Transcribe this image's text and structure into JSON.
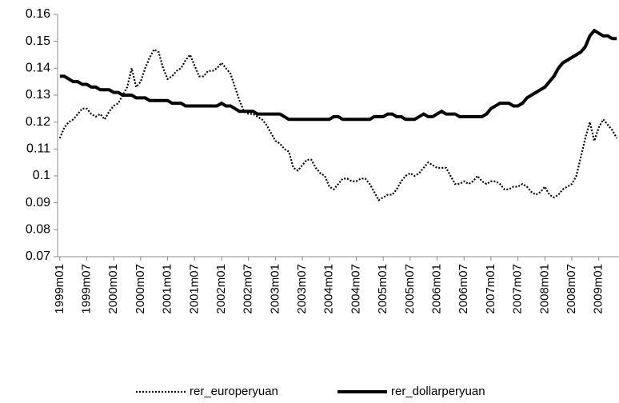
{
  "chart_data": {
    "type": "line",
    "categories": [
      "1999m01",
      null,
      null,
      null,
      null,
      null,
      "1999m07",
      null,
      null,
      null,
      null,
      null,
      "2000m01",
      null,
      null,
      null,
      null,
      null,
      "2000m07",
      null,
      null,
      null,
      null,
      null,
      "2001m01",
      null,
      null,
      null,
      null,
      null,
      "2001m07",
      null,
      null,
      null,
      null,
      null,
      "2002m01",
      null,
      null,
      null,
      null,
      null,
      "2002m07",
      null,
      null,
      null,
      null,
      null,
      "2003m01",
      null,
      null,
      null,
      null,
      null,
      "2003m07",
      null,
      null,
      null,
      null,
      null,
      "2004m01",
      null,
      null,
      null,
      null,
      null,
      "2004m07",
      null,
      null,
      null,
      null,
      null,
      "2005m01",
      null,
      null,
      null,
      null,
      null,
      "2005m07",
      null,
      null,
      null,
      null,
      null,
      "2006m01",
      null,
      null,
      null,
      null,
      null,
      "2006m07",
      null,
      null,
      null,
      null,
      null,
      "2007m01",
      null,
      null,
      null,
      null,
      null,
      "2007m07",
      null,
      null,
      null,
      null,
      null,
      "2008m01",
      null,
      null,
      null,
      null,
      null,
      "2008m07",
      null,
      null,
      null,
      null,
      null,
      "2009m01",
      null,
      null,
      null,
      null
    ],
    "series": [
      {
        "name": "rer_europeryuan",
        "color": "#000000",
        "dash": "2,2",
        "values": [
          0.114,
          0.118,
          0.12,
          0.121,
          0.123,
          0.125,
          0.125,
          0.123,
          0.122,
          0.123,
          0.121,
          0.124,
          0.126,
          0.127,
          0.13,
          0.133,
          0.14,
          0.133,
          0.135,
          0.14,
          0.144,
          0.147,
          0.146,
          0.14,
          0.136,
          0.137,
          0.139,
          0.14,
          0.143,
          0.145,
          0.141,
          0.137,
          0.137,
          0.139,
          0.139,
          0.14,
          0.142,
          0.14,
          0.138,
          0.133,
          0.128,
          0.124,
          0.123,
          0.123,
          0.122,
          0.121,
          0.119,
          0.116,
          0.113,
          0.112,
          0.11,
          0.109,
          0.103,
          0.102,
          0.104,
          0.106,
          0.106,
          0.103,
          0.101,
          0.1,
          0.096,
          0.095,
          0.097,
          0.099,
          0.099,
          0.098,
          0.098,
          0.099,
          0.099,
          0.097,
          0.094,
          0.091,
          0.092,
          0.093,
          0.093,
          0.095,
          0.098,
          0.1,
          0.101,
          0.1,
          0.101,
          0.103,
          0.105,
          0.104,
          0.103,
          0.103,
          0.103,
          0.1,
          0.097,
          0.097,
          0.098,
          0.097,
          0.098,
          0.1,
          0.098,
          0.097,
          0.098,
          0.098,
          0.097,
          0.095,
          0.095,
          0.096,
          0.096,
          0.097,
          0.096,
          0.094,
          0.093,
          0.094,
          0.096,
          0.093,
          0.092,
          0.093,
          0.095,
          0.096,
          0.097,
          0.1,
          0.107,
          0.114,
          0.12,
          0.113,
          0.118,
          0.121,
          0.119,
          0.117,
          0.114
        ]
      },
      {
        "name": "rer_dollarperyuan",
        "color": "#000000",
        "dash": "none",
        "values": [
          0.137,
          0.137,
          0.136,
          0.135,
          0.135,
          0.134,
          0.134,
          0.133,
          0.133,
          0.132,
          0.132,
          0.132,
          0.131,
          0.131,
          0.13,
          0.13,
          0.13,
          0.129,
          0.129,
          0.129,
          0.128,
          0.128,
          0.128,
          0.128,
          0.128,
          0.127,
          0.127,
          0.127,
          0.126,
          0.126,
          0.126,
          0.126,
          0.126,
          0.126,
          0.126,
          0.126,
          0.127,
          0.126,
          0.126,
          0.125,
          0.124,
          0.124,
          0.124,
          0.124,
          0.123,
          0.123,
          0.123,
          0.123,
          0.123,
          0.123,
          0.122,
          0.121,
          0.121,
          0.121,
          0.121,
          0.121,
          0.121,
          0.121,
          0.121,
          0.121,
          0.121,
          0.122,
          0.122,
          0.121,
          0.121,
          0.121,
          0.121,
          0.121,
          0.121,
          0.121,
          0.122,
          0.122,
          0.122,
          0.123,
          0.123,
          0.122,
          0.122,
          0.121,
          0.121,
          0.121,
          0.122,
          0.123,
          0.122,
          0.122,
          0.123,
          0.124,
          0.123,
          0.123,
          0.123,
          0.122,
          0.122,
          0.122,
          0.122,
          0.122,
          0.122,
          0.123,
          0.125,
          0.126,
          0.127,
          0.127,
          0.127,
          0.126,
          0.126,
          0.127,
          0.129,
          0.13,
          0.131,
          0.132,
          0.133,
          0.135,
          0.137,
          0.14,
          0.142,
          0.143,
          0.144,
          0.145,
          0.146,
          0.148,
          0.152,
          0.154,
          0.153,
          0.152,
          0.152,
          0.151,
          0.151
        ]
      }
    ],
    "ylim": [
      0.07,
      0.16
    ],
    "yticks": [
      0.07,
      0.08,
      0.09,
      0.1,
      0.11,
      0.12,
      0.13,
      0.14,
      0.15,
      0.16
    ],
    "grid": false,
    "legend": "bottom"
  }
}
